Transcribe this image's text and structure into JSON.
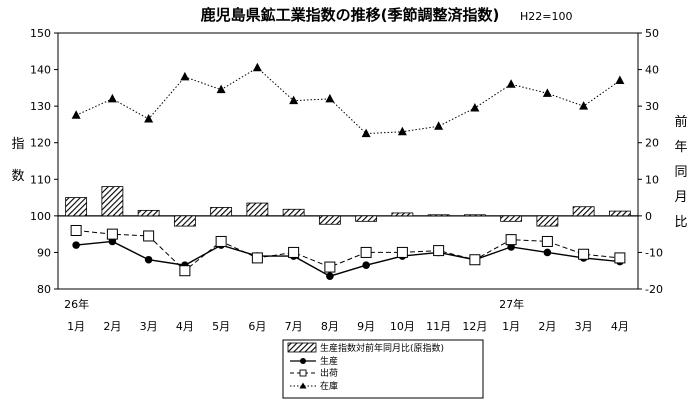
{
  "chart_data": {
    "type": "bar+line",
    "title": "鹿児島県鉱工業指数の推移(季節調整済指数)",
    "subtitle": "H22=100",
    "ylabel_left": [
      "指",
      "数"
    ],
    "ylabel_right": [
      "前",
      "年",
      "同",
      "月",
      "比"
    ],
    "categories": [
      "1月",
      "2月",
      "3月",
      "4月",
      "5月",
      "6月",
      "7月",
      "8月",
      "9月",
      "10月",
      "11月",
      "12月",
      "1月",
      "2月",
      "3月",
      "4月"
    ],
    "year_labels": [
      {
        "index": 0,
        "label": "26年"
      },
      {
        "index": 12,
        "label": "27年"
      }
    ],
    "left_axis": {
      "min": 80,
      "max": 150,
      "ticks": [
        80,
        90,
        100,
        110,
        120,
        130,
        140,
        150
      ]
    },
    "right_axis": {
      "min": -20,
      "max": 50,
      "ticks": [
        -20,
        -10,
        0,
        10,
        20,
        30,
        40,
        50
      ]
    },
    "bars": {
      "name": "生産指数対前年同月比(原指数)",
      "axis": "right",
      "values": [
        5.0,
        8.0,
        1.5,
        -2.8,
        2.3,
        3.5,
        1.8,
        -2.3,
        -1.5,
        0.8,
        0.3,
        0.3,
        -1.5,
        -2.8,
        2.5,
        1.3
      ]
    },
    "series": [
      {
        "name": "生産",
        "axis": "left",
        "marker": "dot",
        "dash": "solid",
        "values": [
          92,
          93,
          88,
          86.5,
          92,
          89,
          89,
          83.5,
          86.5,
          89,
          90,
          88,
          91.5,
          90,
          88.5,
          87.5
        ]
      },
      {
        "name": "出荷",
        "axis": "left",
        "marker": "square",
        "dash": "dashed",
        "values": [
          96,
          95,
          94.5,
          85,
          93,
          88.5,
          90,
          86,
          90,
          90,
          90.5,
          88,
          93.5,
          93,
          89.5,
          88.5
        ]
      },
      {
        "name": "在庫",
        "axis": "left",
        "marker": "triangle",
        "dash": "dotted",
        "values": [
          127.5,
          132,
          126.5,
          138,
          134.5,
          140.5,
          131.5,
          132,
          122.5,
          123,
          124.5,
          129.5,
          136,
          133.5,
          130,
          137
        ]
      }
    ],
    "legend_position": "bottom-center"
  }
}
